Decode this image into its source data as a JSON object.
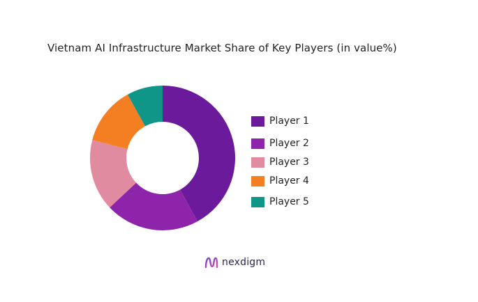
{
  "chart_data": {
    "type": "pie",
    "title": "Vietnam AI Infrastructure Market Share of Key Players (in value%)",
    "categories": [
      "Player 1",
      "Player 2",
      "Player 3",
      "Player 4",
      "Player 5"
    ],
    "values": [
      42,
      21,
      16,
      13,
      8
    ],
    "colors": [
      "#6a1a9a",
      "#8e24aa",
      "#e08ba0",
      "#f37f22",
      "#0f9688"
    ],
    "donut": true,
    "legend_position": "right"
  },
  "brand": {
    "name": "nexdigm",
    "icon": "nexdigm-logo-icon"
  }
}
